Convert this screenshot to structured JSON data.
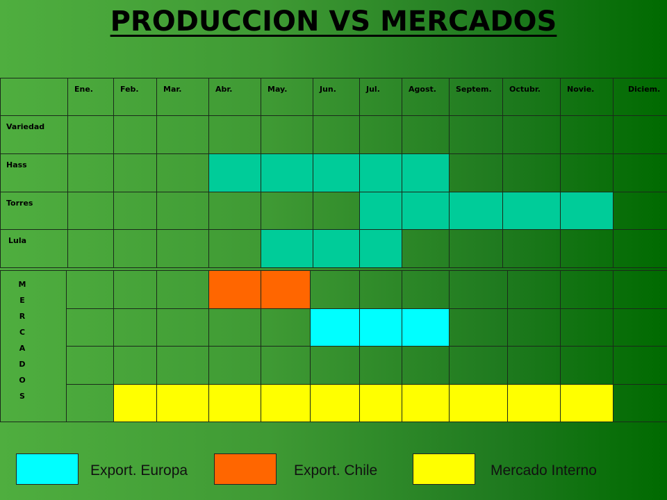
{
  "title": "PRODUCCION  VS MERCADOS",
  "production_table": {
    "header": [
      "Ene.",
      "Feb.",
      "Mar.",
      "Abr.",
      "May.",
      "Jun.",
      "Jul.",
      "Agost.",
      "Septem.",
      "Octubr.",
      "Novie.",
      "Diciem."
    ],
    "rows": [
      "Variedad",
      "Hass",
      "Torres",
      "Lula"
    ]
  },
  "markets_table": {
    "label": "MERCADOS"
  },
  "legend": [
    "Export. Europa",
    "Export. Chile",
    "Mercado  Interno"
  ]
}
